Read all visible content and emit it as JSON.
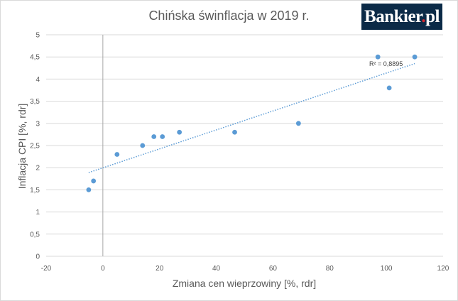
{
  "chart_data": {
    "type": "scatter",
    "title": "Chińska świnflacja w 2019 r.",
    "xlabel": "Zmiana cen wieprzowiny [%, rdr]",
    "ylabel": "Inflacja CPI [%, rdr]",
    "xlim": [
      -20,
      120
    ],
    "ylim": [
      0,
      5
    ],
    "x_ticks": [
      "-20",
      "0",
      "20",
      "40",
      "60",
      "80",
      "100",
      "120"
    ],
    "y_ticks": [
      "0",
      "0,5",
      "1",
      "1,5",
      "2",
      "2,5",
      "3",
      "3,5",
      "4",
      "4,5",
      "5"
    ],
    "x_tick_values": [
      -20,
      0,
      20,
      40,
      60,
      80,
      100,
      120
    ],
    "y_tick_values": [
      0,
      0.5,
      1,
      1.5,
      2,
      2.5,
      3,
      3.5,
      4,
      4.5,
      5
    ],
    "grid": "horizontal",
    "series": [
      {
        "points": [
          {
            "x": -5,
            "y": 1.5
          },
          {
            "x": -3.3,
            "y": 1.7
          },
          {
            "x": 5,
            "y": 2.3
          },
          {
            "x": 14,
            "y": 2.5
          },
          {
            "x": 18,
            "y": 2.7
          },
          {
            "x": 21,
            "y": 2.7
          },
          {
            "x": 27,
            "y": 2.8
          },
          {
            "x": 46.5,
            "y": 2.8
          },
          {
            "x": 69,
            "y": 3.0
          },
          {
            "x": 97,
            "y": 4.5
          },
          {
            "x": 101,
            "y": 3.8
          },
          {
            "x": 110,
            "y": 4.5
          }
        ]
      }
    ],
    "trendline": {
      "type": "linear",
      "x_start": -5,
      "y_start": 1.89,
      "x_end": 110,
      "y_end": 4.35
    },
    "r2_label": "R² = 0,8895",
    "colors": {
      "points": "#5b9bd5",
      "trendline": "#5b9bd5",
      "gridline": "#d9d9d9",
      "zero_line": "#a6a6a6"
    }
  },
  "logo": {
    "text": "Bankier",
    "dot": ".",
    "suffix": "pl"
  }
}
